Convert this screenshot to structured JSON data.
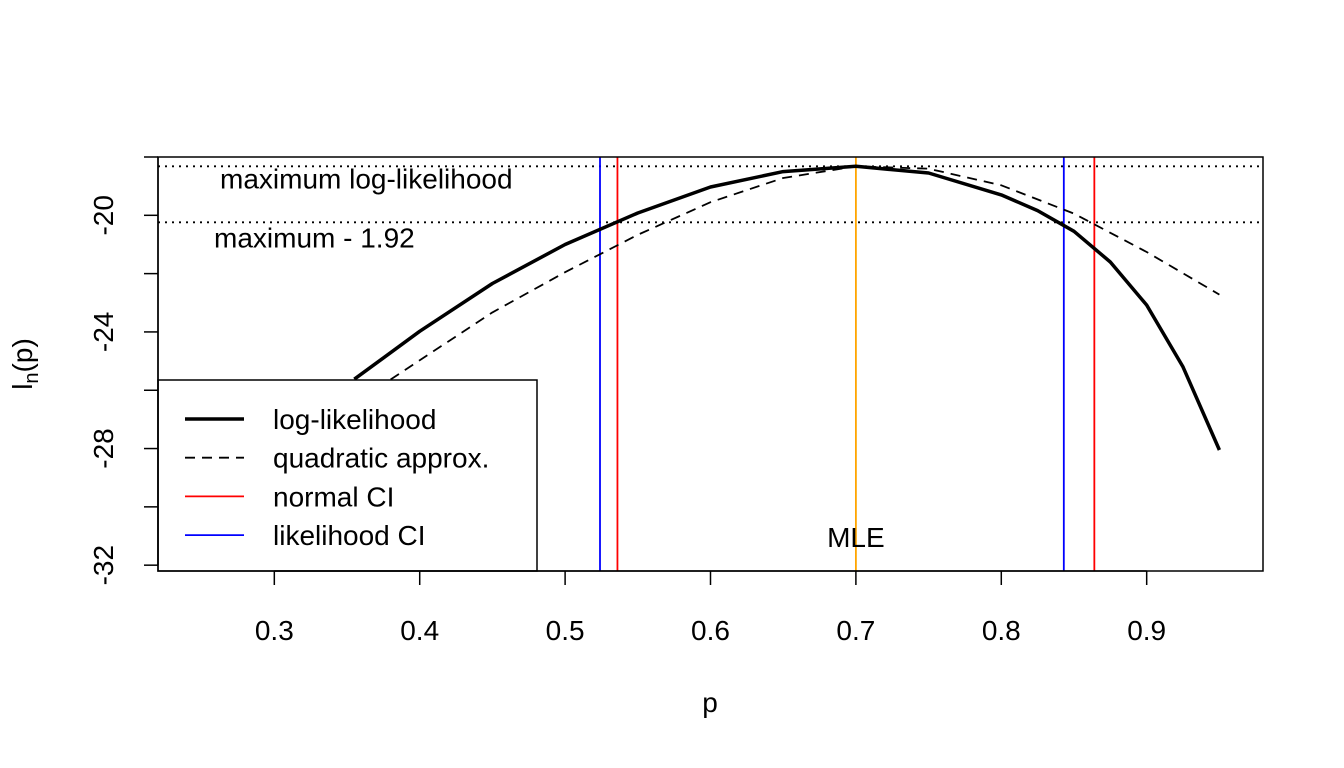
{
  "chart_data": {
    "type": "line",
    "title": "",
    "xlabel": "p",
    "ylabel": {
      "base": "l",
      "sub": "n",
      "rest": "(p)"
    },
    "xlim": [
      0.22,
      0.98
    ],
    "ylim": [
      -32.2,
      -18.0
    ],
    "x_ticks": [
      0.3,
      0.4,
      0.5,
      0.6,
      0.7,
      0.8,
      0.9
    ],
    "y_ticks": [
      -32,
      -30,
      -28,
      -26,
      -24,
      -22,
      -20,
      -18
    ],
    "y_tick_labels": [
      -32,
      -28,
      -24,
      -20
    ],
    "mle": 0.7,
    "max_loglik": -18.32,
    "series": [
      {
        "name": "log-likelihood",
        "style": "solid",
        "color": "#000000",
        "x": [
          0.355,
          0.4,
          0.45,
          0.5,
          0.55,
          0.6,
          0.65,
          0.7,
          0.75,
          0.8,
          0.825,
          0.85,
          0.875,
          0.9,
          0.925,
          0.95
        ],
        "y": [
          -25.62,
          -23.98,
          -22.34,
          -21.0,
          -19.92,
          -19.03,
          -18.5,
          -18.32,
          -18.55,
          -19.3,
          -19.84,
          -20.55,
          -21.6,
          -23.08,
          -25.2,
          -28.05
        ]
      },
      {
        "name": "quadratic approx.",
        "style": "dashed",
        "color": "#000000",
        "x": [
          0.38,
          0.45,
          0.5,
          0.55,
          0.6,
          0.65,
          0.7,
          0.75,
          0.8,
          0.85,
          0.9,
          0.95
        ],
        "y": [
          -25.63,
          -23.33,
          -21.95,
          -20.67,
          -19.55,
          -18.72,
          -18.32,
          -18.4,
          -18.97,
          -19.94,
          -21.26,
          -22.72
        ]
      }
    ],
    "hlines": [
      {
        "y": -18.32,
        "label": "maximum log-likelihood",
        "style": "dotted"
      },
      {
        "y": -20.24,
        "label": "maximum - 1.92",
        "style": "dotted"
      }
    ],
    "vlines": [
      {
        "x": 0.524,
        "color": "#0000ff",
        "group": "likelihood CI"
      },
      {
        "x": 0.536,
        "color": "#ff0000",
        "group": "normal CI"
      },
      {
        "x": 0.7,
        "color": "#ffa500",
        "group": "MLE",
        "label": "MLE"
      },
      {
        "x": 0.843,
        "color": "#0000ff",
        "group": "likelihood CI"
      },
      {
        "x": 0.864,
        "color": "#ff0000",
        "group": "normal CI"
      }
    ],
    "legend": {
      "position": "bottom-left",
      "entries": [
        {
          "label": "log-likelihood",
          "style": "solid-thick",
          "color": "#000000"
        },
        {
          "label": "quadratic approx.",
          "style": "dashed",
          "color": "#000000"
        },
        {
          "label": "normal CI",
          "style": "solid",
          "color": "#ff0000"
        },
        {
          "label": "likelihood CI",
          "style": "solid",
          "color": "#0000ff"
        }
      ]
    }
  }
}
